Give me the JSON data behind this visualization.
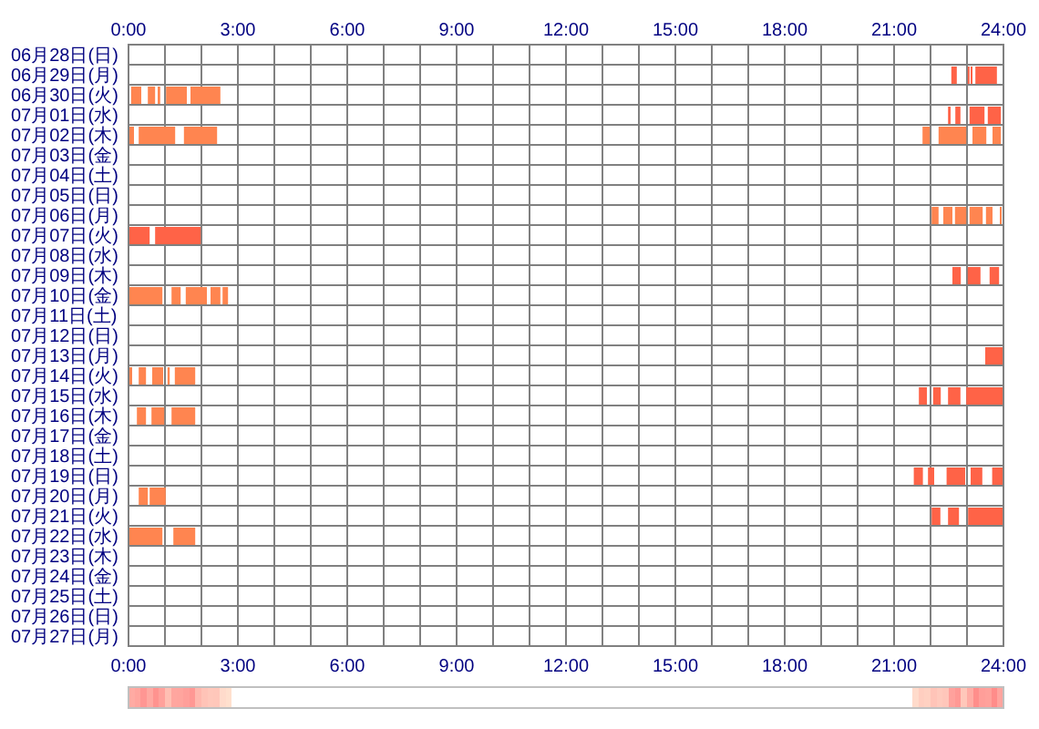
{
  "chart_data": {
    "type": "bar",
    "orientation": "horizontal",
    "categories": [
      "06月28日(日)",
      "06月29日(月)",
      "06月30日(火)",
      "07月01日(水)",
      "07月02日(木)",
      "07月03日(金)",
      "07月04日(土)",
      "07月05日(日)",
      "07月06日(月)",
      "07月07日(火)",
      "07月08日(水)",
      "07月09日(木)",
      "07月10日(金)",
      "07月11日(土)",
      "07月12日(日)",
      "07月13日(月)",
      "07月14日(火)",
      "07月15日(水)",
      "07月16日(木)",
      "07月17日(金)",
      "07月18日(土)",
      "07月19日(日)",
      "07月20日(月)",
      "07月21日(火)",
      "07月22日(水)",
      "07月23日(木)",
      "07月24日(金)",
      "07月25日(土)",
      "07月26日(日)",
      "07月27日(月)"
    ],
    "xlim": [
      0,
      24
    ],
    "xticks": [
      {
        "value": 0,
        "label": "0:00"
      },
      {
        "value": 1,
        "label": null
      },
      {
        "value": 2,
        "label": null
      },
      {
        "value": 3,
        "label": "3:00"
      },
      {
        "value": 4,
        "label": null
      },
      {
        "value": 5,
        "label": null
      },
      {
        "value": 6,
        "label": "6:00"
      },
      {
        "value": 7,
        "label": null
      },
      {
        "value": 8,
        "label": null
      },
      {
        "value": 9,
        "label": "9:00"
      },
      {
        "value": 10,
        "label": null
      },
      {
        "value": 11,
        "label": null
      },
      {
        "value": 12,
        "label": "12:00"
      },
      {
        "value": 13,
        "label": null
      },
      {
        "value": 14,
        "label": null
      },
      {
        "value": 15,
        "label": "15:00"
      },
      {
        "value": 16,
        "label": null
      },
      {
        "value": 17,
        "label": null
      },
      {
        "value": 18,
        "label": "18:00"
      },
      {
        "value": 19,
        "label": null
      },
      {
        "value": 20,
        "label": null
      },
      {
        "value": 21,
        "label": "21:00"
      },
      {
        "value": 22,
        "label": null
      },
      {
        "value": 23,
        "label": null
      },
      {
        "value": 24,
        "label": "24:00"
      }
    ],
    "x2lim": [
      0,
      24
    ],
    "x2ticks": [
      {
        "value": 0,
        "label": "0:00"
      },
      {
        "value": 3,
        "label": "3:00"
      },
      {
        "value": 6,
        "label": "6:00"
      },
      {
        "value": 9,
        "label": "9:00"
      },
      {
        "value": 12,
        "label": "12:00"
      },
      {
        "value": 15,
        "label": "15:00"
      },
      {
        "value": 18,
        "label": "18:00"
      },
      {
        "value": 21,
        "label": "21:00"
      },
      {
        "value": 24,
        "label": "24:00"
      }
    ],
    "grid": true,
    "series": [
      {
        "base": [
          null,
          22.57,
          0.07,
          22.48,
          0,
          null,
          null,
          null,
          22.03,
          0,
          null,
          22.6,
          0,
          null,
          null,
          23.5,
          0,
          21.68,
          0.23,
          null,
          null,
          21.54,
          0.28,
          22.03,
          0,
          null,
          null,
          null,
          null,
          null
        ],
        "values": [
          null,
          0.15,
          0.28,
          0.07,
          0.15,
          null,
          null,
          null,
          0.19,
          0.58,
          null,
          0.23,
          0.93,
          null,
          null,
          0.5,
          0.1,
          0.22,
          0.25,
          null,
          null,
          0.25,
          0.25,
          0.24,
          0.93,
          null,
          null,
          null,
          null,
          null
        ],
        "colors": [
          null,
          "#ff6347",
          "#ff8550",
          "#ff6347",
          "#ff8550",
          null,
          null,
          null,
          "#ff8550",
          "#ff6347",
          null,
          "#ff6347",
          "#ff8550",
          null,
          null,
          "#ff6347",
          "#ff8550",
          "#ff6347",
          "#ff8550",
          null,
          null,
          "#ff6347",
          "#ff8550",
          "#ff6347",
          "#ff8550",
          null,
          null,
          null,
          null,
          null
        ]
      },
      {
        "base": [
          null,
          23.02,
          0.53,
          22.68,
          0.28,
          null,
          null,
          null,
          22.35,
          0.73,
          null,
          23.02,
          1.18,
          null,
          null,
          null,
          0.28,
          22.07,
          0.63,
          null,
          null,
          21.93,
          0.58,
          22.48,
          1.23,
          null,
          null,
          null,
          null,
          null
        ],
        "values": [
          null,
          0.05,
          0.2,
          0.14,
          1.0,
          null,
          null,
          null,
          0.25,
          1.25,
          null,
          0.35,
          0.25,
          null,
          null,
          null,
          0.2,
          0.21,
          0.35,
          null,
          null,
          0.17,
          0.44,
          0.3,
          0.6,
          null,
          null,
          null,
          null,
          null
        ],
        "colors": [
          null,
          "#ff6347",
          "#ff8550",
          "#ff6347",
          "#ff8550",
          null,
          null,
          null,
          "#ff8550",
          "#ff6347",
          null,
          "#ff6347",
          "#ff8550",
          null,
          null,
          null,
          "#ff8550",
          "#ff6347",
          "#ff8550",
          null,
          null,
          "#ff6347",
          "#ff8550",
          "#ff6347",
          "#ff8550",
          null,
          null,
          null,
          null,
          null
        ]
      },
      {
        "base": [
          null,
          23.1,
          0.8,
          23.07,
          1.52,
          null,
          null,
          null,
          22.67,
          null,
          null,
          23.62,
          1.57,
          null,
          null,
          null,
          0.65,
          22.48,
          1.18,
          null,
          null,
          22.44,
          null,
          23.03,
          null,
          null,
          null,
          null,
          null,
          null
        ],
        "values": [
          null,
          0.05,
          0.07,
          0.41,
          0.91,
          null,
          null,
          null,
          0.31,
          null,
          null,
          0.26,
          0.58,
          null,
          null,
          null,
          0.3,
          0.34,
          0.65,
          null,
          null,
          0.51,
          null,
          0.97,
          null,
          null,
          null,
          null,
          null,
          null
        ],
        "colors": [
          null,
          "#ff6347",
          "#ff8550",
          "#ff6347",
          "#ff8550",
          null,
          null,
          null,
          "#ff8550",
          null,
          null,
          "#ff6347",
          "#ff8550",
          null,
          null,
          null,
          "#ff8550",
          "#ff6347",
          "#ff8550",
          null,
          null,
          "#ff6347",
          null,
          "#ff6347",
          null,
          null,
          null,
          null,
          null,
          null
        ]
      },
      {
        "base": [
          null,
          23.23,
          1.03,
          23.57,
          21.78,
          null,
          null,
          null,
          23.07,
          null,
          null,
          null,
          2.25,
          null,
          null,
          null,
          1.07,
          22.98,
          null,
          null,
          null,
          23.1,
          null,
          null,
          null,
          null,
          null,
          null,
          null,
          null
        ],
        "values": [
          null,
          0.59,
          0.57,
          0.36,
          0.2,
          null,
          null,
          null,
          0.36,
          null,
          null,
          null,
          0.27,
          null,
          null,
          null,
          0.06,
          1.02,
          null,
          null,
          null,
          0.32,
          null,
          null,
          null,
          null,
          null,
          null,
          null,
          null
        ],
        "colors": [
          null,
          "#ff6347",
          "#ff8550",
          "#ff6347",
          "#ff8550",
          null,
          null,
          null,
          "#ff8550",
          null,
          null,
          null,
          "#ff8550",
          null,
          null,
          null,
          "#ff8550",
          "#ff6347",
          null,
          null,
          null,
          "#ff6347",
          null,
          null,
          null,
          null,
          null,
          null,
          null,
          null
        ]
      },
      {
        "base": [
          null,
          null,
          1.7,
          null,
          22.22,
          null,
          null,
          null,
          23.52,
          null,
          null,
          null,
          2.58,
          null,
          null,
          null,
          1.27,
          null,
          null,
          null,
          null,
          23.69,
          null,
          null,
          null,
          null,
          null,
          null,
          null,
          null
        ],
        "values": [
          null,
          null,
          0.82,
          null,
          0.76,
          null,
          null,
          null,
          0.18,
          null,
          null,
          null,
          0.15,
          null,
          null,
          null,
          0.56,
          null,
          null,
          null,
          null,
          0.29,
          null,
          null,
          null,
          null,
          null,
          null,
          null,
          null
        ],
        "colors": [
          null,
          null,
          "#ff8550",
          null,
          "#ff8550",
          null,
          null,
          null,
          "#ff8550",
          null,
          null,
          null,
          "#ff8550",
          null,
          null,
          null,
          "#ff8550",
          null,
          null,
          null,
          null,
          "#ff6347",
          null,
          null,
          null,
          null,
          null,
          null,
          null,
          null
        ]
      },
      {
        "base": [
          null,
          null,
          null,
          null,
          23.15,
          null,
          null,
          null,
          23.9,
          null,
          null,
          null,
          null,
          null,
          null,
          null,
          null,
          null,
          null,
          null,
          null,
          null,
          null,
          null,
          null,
          null,
          null,
          null,
          null,
          null
        ],
        "values": [
          null,
          null,
          null,
          null,
          0.38,
          null,
          null,
          null,
          0.05,
          null,
          null,
          null,
          null,
          null,
          null,
          null,
          null,
          null,
          null,
          null,
          null,
          null,
          null,
          null,
          null,
          null,
          null,
          null,
          null,
          null
        ],
        "colors": [
          null,
          null,
          null,
          null,
          "#ff8550",
          null,
          null,
          null,
          "#ff8550",
          null,
          null,
          null,
          null,
          null,
          null,
          null,
          null,
          null,
          null,
          null,
          null,
          null,
          null,
          null,
          null,
          null,
          null,
          null,
          null,
          null
        ]
      },
      {
        "base": [
          null,
          null,
          null,
          null,
          23.7,
          null,
          null,
          null,
          null,
          null,
          null,
          null,
          null,
          null,
          null,
          null,
          null,
          null,
          null,
          null,
          null,
          null,
          null,
          null,
          null,
          null,
          null,
          null,
          null,
          null
        ],
        "values": [
          null,
          null,
          null,
          null,
          0.23,
          null,
          null,
          null,
          null,
          null,
          null,
          null,
          null,
          null,
          null,
          null,
          null,
          null,
          null,
          null,
          null,
          null,
          null,
          null,
          null,
          null,
          null,
          null,
          null,
          null
        ],
        "colors": [
          null,
          null,
          null,
          null,
          "#ff8550",
          null,
          null,
          null,
          null,
          null,
          null,
          null,
          null,
          null,
          null,
          null,
          null,
          null,
          null,
          null,
          null,
          null,
          null,
          null,
          null,
          null,
          null,
          null,
          null,
          null
        ]
      }
    ]
  }
}
